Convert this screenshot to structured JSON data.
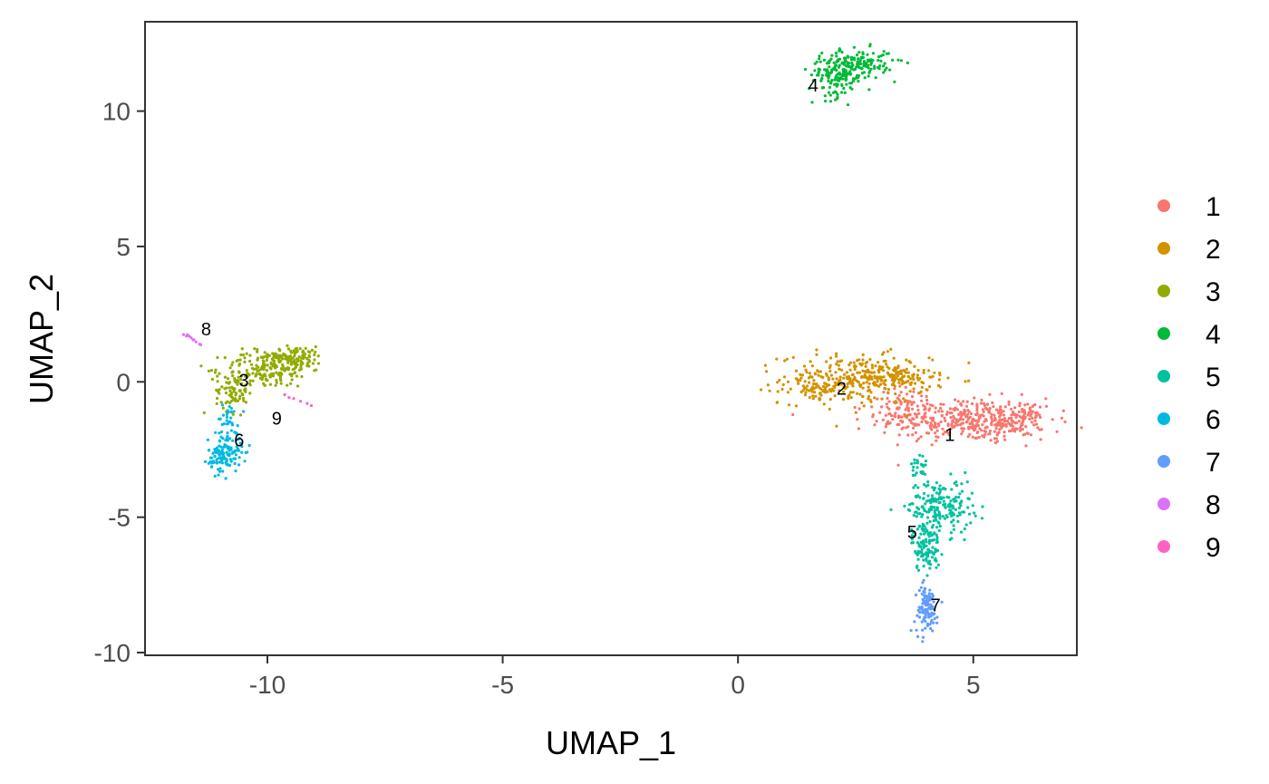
{
  "chart_data": {
    "type": "scatter",
    "title": "",
    "xlabel": "UMAP_1",
    "ylabel": "UMAP_2",
    "xlim": [
      -12.6,
      7.2
    ],
    "ylim": [
      -10.1,
      13.3
    ],
    "x_ticks": [
      -10,
      -5,
      0,
      5
    ],
    "x_tick_labels": [
      "-10",
      "-5",
      "0",
      "5"
    ],
    "y_ticks": [
      -10,
      -5,
      0,
      5,
      10
    ],
    "y_tick_labels": [
      "-10",
      "-5",
      "0",
      "5",
      "10"
    ],
    "grid": false,
    "legend_position": "right",
    "series": [
      {
        "name": "1",
        "color": "#F8766D",
        "label_x": 4.5,
        "label_y": -2.0,
        "clusters": [
          {
            "cx": 4.8,
            "cy": -1.4,
            "sx": 0.9,
            "sy": 0.4,
            "n": 360
          },
          {
            "cx": 5.8,
            "cy": -1.5,
            "sx": 0.35,
            "sy": 0.3,
            "n": 90
          },
          {
            "cx": 3.6,
            "cy": -0.9,
            "sx": 0.4,
            "sy": 0.35,
            "n": 60
          }
        ]
      },
      {
        "name": "2",
        "color": "#D39200",
        "label_x": 2.2,
        "label_y": -0.3,
        "clusters": [
          {
            "cx": 2.5,
            "cy": 0.1,
            "sx": 0.8,
            "sy": 0.45,
            "n": 300
          },
          {
            "cx": 1.6,
            "cy": -0.3,
            "sx": 0.25,
            "sy": 0.2,
            "n": 40
          },
          {
            "cx": 3.4,
            "cy": 0.2,
            "sx": 0.4,
            "sy": 0.2,
            "n": 80
          }
        ]
      },
      {
        "name": "3",
        "color": "#93AA00",
        "label_x": -10.5,
        "label_y": 0.0,
        "clusters": [
          {
            "cx": -10.0,
            "cy": 0.5,
            "sx": 0.45,
            "sy": 0.35,
            "n": 160
          },
          {
            "cx": -9.4,
            "cy": 0.9,
            "sx": 0.3,
            "sy": 0.2,
            "n": 110
          },
          {
            "cx": -10.7,
            "cy": -0.3,
            "sx": 0.2,
            "sy": 0.4,
            "n": 90
          }
        ]
      },
      {
        "name": "4",
        "color": "#00BA38",
        "label_x": 1.6,
        "label_y": 10.9,
        "clusters": [
          {
            "cx": 2.1,
            "cy": 11.3,
            "sx": 0.3,
            "sy": 0.4,
            "n": 140
          },
          {
            "cx": 2.6,
            "cy": 11.8,
            "sx": 0.35,
            "sy": 0.25,
            "n": 120
          }
        ]
      },
      {
        "name": "5",
        "color": "#00C19F",
        "label_x": 3.7,
        "label_y": -5.6,
        "clusters": [
          {
            "cx": 4.3,
            "cy": -4.6,
            "sx": 0.35,
            "sy": 0.5,
            "n": 200
          },
          {
            "cx": 4.0,
            "cy": -6.1,
            "sx": 0.15,
            "sy": 0.45,
            "n": 110
          },
          {
            "cx": 3.85,
            "cy": -3.2,
            "sx": 0.08,
            "sy": 0.35,
            "n": 25
          }
        ]
      },
      {
        "name": "6",
        "color": "#00B9E3",
        "label_x": -10.6,
        "label_y": -2.2,
        "clusters": [
          {
            "cx": -10.9,
            "cy": -2.7,
            "sx": 0.18,
            "sy": 0.3,
            "n": 120
          },
          {
            "cx": -10.8,
            "cy": -1.5,
            "sx": 0.12,
            "sy": 0.35,
            "n": 40
          }
        ]
      },
      {
        "name": "7",
        "color": "#619CFF",
        "label_x": 4.2,
        "label_y": -8.3,
        "clusters": [
          {
            "cx": 4.0,
            "cy": -8.4,
            "sx": 0.12,
            "sy": 0.45,
            "n": 110
          }
        ]
      },
      {
        "name": "8",
        "color": "#DB72FB",
        "label_x": -11.3,
        "label_y": 1.9,
        "clusters": [
          {
            "line": [
              [
                -11.8,
                1.8
              ],
              [
                -11.4,
                1.4
              ]
            ],
            "n": 10
          }
        ]
      },
      {
        "name": "9",
        "color": "#FF61C3",
        "label_x": -9.8,
        "label_y": -1.4,
        "clusters": [
          {
            "line": [
              [
                -9.6,
                -0.5
              ],
              [
                -9.1,
                -0.8
              ]
            ],
            "n": 6
          }
        ]
      }
    ]
  }
}
